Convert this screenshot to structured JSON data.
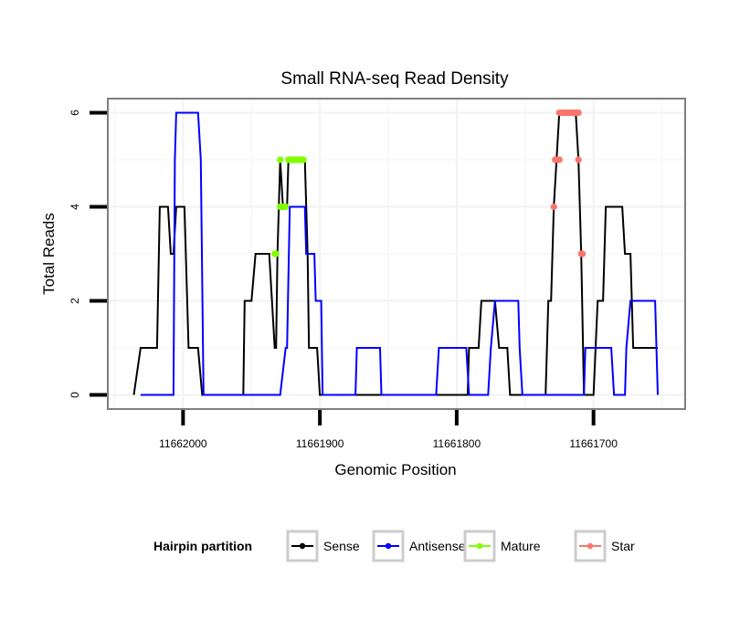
{
  "chart_data": {
    "type": "line",
    "title": "Small RNA-seq Read Density",
    "xlabel": "Genomic Position",
    "ylabel": "Total Reads",
    "x_reversed": true,
    "xlim": [
      11662055,
      11661633
    ],
    "ylim": [
      -0.3,
      6.3
    ],
    "x_ticks": [
      11662000,
      11661900,
      11661800,
      11661700
    ],
    "x_tick_labels": [
      "11662000",
      "11661900",
      "11661800",
      "11661700"
    ],
    "y_ticks": [
      0,
      2,
      4,
      6
    ],
    "y_tick_labels": [
      "0",
      "2",
      "4",
      "6"
    ],
    "grid": true,
    "legend": {
      "title": "Hairpin partition",
      "placement": "bottom",
      "entries": [
        {
          "name": "Sense",
          "color": "#000000"
        },
        {
          "name": "Antisense",
          "color": "#0000ff"
        },
        {
          "name": "Mature",
          "color": "#7fff00"
        },
        {
          "name": "Star",
          "color": "#f8766d"
        }
      ]
    },
    "series": [
      {
        "name": "Sense",
        "kind": "line",
        "color": "#000000",
        "x": [
          11662036,
          11662031,
          11662019,
          11662017,
          11662011,
          11662009,
          11662007,
          11662005,
          11661999,
          11661996,
          11661989,
          11661986,
          11661956,
          11661955,
          11661950,
          11661947,
          11661937,
          11661933,
          11661932,
          11661931,
          11661930,
          11661929,
          11661927,
          11661924,
          11661923,
          11661911,
          11661909,
          11661908,
          11661902,
          11661900,
          11661792,
          11661791,
          11661784,
          11661782,
          11661772,
          11661769,
          11661763,
          11661761,
          11661735,
          11661733,
          11661731,
          11661729,
          11661727,
          11661725,
          11661713,
          11661711,
          11661709,
          11661707,
          11661700,
          11661697,
          11661693,
          11661691,
          11661679,
          11661677,
          11661673,
          11661671,
          11661653
        ],
        "y": [
          0,
          1,
          1,
          4,
          4,
          3,
          3,
          4,
          4,
          1,
          1,
          0,
          0,
          2,
          2,
          3,
          3,
          1,
          1,
          3,
          4,
          5,
          4,
          4,
          5,
          5,
          3,
          1,
          1,
          0,
          0,
          1,
          1,
          2,
          2,
          1,
          1,
          0,
          0,
          2,
          2,
          4,
          5,
          6,
          6,
          5,
          3,
          0,
          0,
          2,
          2,
          4,
          4,
          3,
          3,
          1,
          1
        ]
      },
      {
        "name": "Antisense",
        "kind": "line",
        "color": "#0000ff",
        "x": [
          11662031,
          11662007,
          11662006,
          11662005,
          11661989,
          11661987,
          11661985,
          11661929,
          11661925,
          11661924,
          11661922,
          11661911,
          11661910,
          11661904,
          11661903,
          11661899,
          11661898,
          11661874,
          11661873,
          11661856,
          11661855,
          11661815,
          11661813,
          11661793,
          11661791,
          11661777,
          11661775,
          11661772,
          11661755,
          11661754,
          11661752,
          11661726,
          11661707,
          11661706,
          11661687,
          11661685,
          11661677,
          11661676,
          11661673,
          11661655,
          11661653
        ],
        "y": [
          0,
          0,
          5,
          6,
          6,
          5,
          0,
          0,
          1,
          1,
          4,
          4,
          3,
          3,
          2,
          2,
          0,
          0,
          1,
          1,
          0,
          0,
          1,
          1,
          0,
          0,
          1,
          2,
          2,
          1,
          0,
          0,
          0,
          1,
          1,
          0,
          0,
          1,
          2,
          2,
          0
        ]
      },
      {
        "name": "Mature",
        "kind": "points",
        "color": "#7fff00",
        "points": [
          [
            11661933,
            3
          ],
          [
            11661932,
            3
          ],
          [
            11661929,
            5
          ],
          [
            11661929,
            4
          ],
          [
            11661928,
            4
          ],
          [
            11661927,
            4
          ],
          [
            11661926,
            4
          ],
          [
            11661925,
            4
          ],
          [
            11661923,
            5
          ],
          [
            11661922,
            5
          ],
          [
            11661921,
            5
          ],
          [
            11661920,
            5
          ],
          [
            11661919,
            5
          ],
          [
            11661918,
            5
          ],
          [
            11661917,
            5
          ],
          [
            11661916,
            5
          ],
          [
            11661915,
            5
          ],
          [
            11661914,
            5
          ],
          [
            11661913,
            5
          ],
          [
            11661912,
            5
          ]
        ]
      },
      {
        "name": "Star",
        "kind": "points",
        "color": "#f8766d",
        "points": [
          [
            11661729,
            4
          ],
          [
            11661728,
            5
          ],
          [
            11661727,
            5
          ],
          [
            11661726,
            5
          ],
          [
            11661725,
            5
          ],
          [
            11661725,
            6
          ],
          [
            11661724,
            6
          ],
          [
            11661723,
            6
          ],
          [
            11661722,
            6
          ],
          [
            11661721,
            6
          ],
          [
            11661720,
            6
          ],
          [
            11661719,
            6
          ],
          [
            11661718,
            6
          ],
          [
            11661717,
            6
          ],
          [
            11661716,
            6
          ],
          [
            11661715,
            6
          ],
          [
            11661714,
            6
          ],
          [
            11661713,
            6
          ],
          [
            11661712,
            6
          ],
          [
            11661711,
            6
          ],
          [
            11661711,
            5
          ],
          [
            11661709,
            3
          ],
          [
            11661708,
            3
          ]
        ]
      }
    ]
  }
}
